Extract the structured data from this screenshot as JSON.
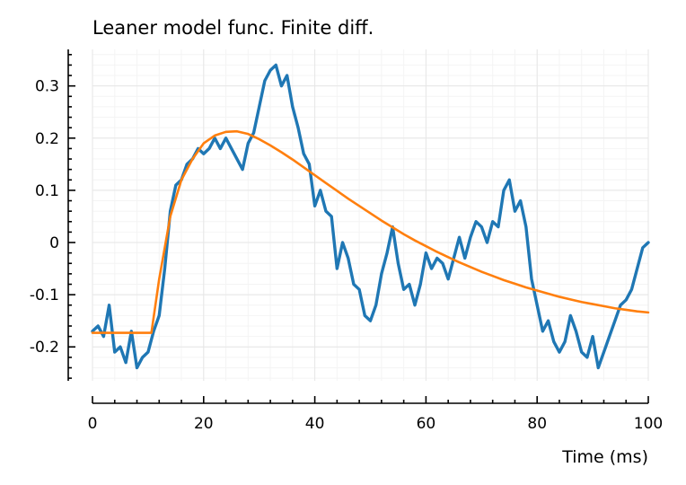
{
  "chart_data": {
    "type": "line",
    "title": "Leaner model func. Finite diff.",
    "xlabel": "Time (ms)",
    "ylabel": "",
    "xlim": [
      0,
      100
    ],
    "ylim": [
      -0.265,
      0.37
    ],
    "x_ticks": [
      0,
      20,
      40,
      60,
      80,
      100
    ],
    "x_tick_labels": [
      "0",
      "20",
      "40",
      "60",
      "80",
      "100"
    ],
    "y_ticks": [
      -0.2,
      -0.1,
      0,
      0.1,
      0.2,
      0.3
    ],
    "y_tick_labels": [
      "-0.2",
      "-0.1",
      "0",
      "0.1",
      "0.2",
      "0.3"
    ],
    "grid": true,
    "legend": "none",
    "series": [
      {
        "color": "#1f77b4",
        "x": [
          0,
          1,
          2,
          3,
          4,
          5,
          6,
          7,
          8,
          9,
          10,
          11,
          12,
          13,
          14,
          15,
          16,
          17,
          18,
          19,
          20,
          21,
          22,
          23,
          24,
          25,
          26,
          27,
          28,
          29,
          30,
          31,
          32,
          33,
          34,
          35,
          36,
          37,
          38,
          39,
          40,
          41,
          42,
          43,
          44,
          45,
          46,
          47,
          48,
          49,
          50,
          51,
          52,
          53,
          54,
          55,
          56,
          57,
          58,
          59,
          60,
          61,
          62,
          63,
          64,
          65,
          66,
          67,
          68,
          69,
          70,
          71,
          72,
          73,
          74,
          75,
          76,
          77,
          78,
          79,
          80,
          81,
          82,
          83,
          84,
          85,
          86,
          87,
          88,
          89,
          90,
          91,
          92,
          93,
          94,
          95,
          96,
          97,
          98,
          99,
          100
        ],
        "y": [
          -0.17,
          -0.16,
          -0.18,
          -0.12,
          -0.21,
          -0.2,
          -0.23,
          -0.17,
          -0.24,
          -0.22,
          -0.21,
          -0.17,
          -0.14,
          -0.05,
          0.06,
          0.11,
          0.12,
          0.15,
          0.16,
          0.18,
          0.17,
          0.18,
          0.2,
          0.18,
          0.2,
          0.18,
          0.16,
          0.14,
          0.19,
          0.21,
          0.26,
          0.31,
          0.33,
          0.34,
          0.3,
          0.32,
          0.26,
          0.22,
          0.17,
          0.15,
          0.07,
          0.1,
          0.06,
          0.05,
          -0.05,
          0.0,
          -0.03,
          -0.08,
          -0.09,
          -0.14,
          -0.15,
          -0.12,
          -0.06,
          -0.02,
          0.03,
          -0.04,
          -0.09,
          -0.08,
          -0.12,
          -0.08,
          -0.02,
          -0.05,
          -0.03,
          -0.04,
          -0.07,
          -0.03,
          0.01,
          -0.03,
          0.01,
          0.04,
          0.03,
          0.0,
          0.04,
          0.03,
          0.1,
          0.12,
          0.06,
          0.08,
          0.03,
          -0.07,
          -0.12,
          -0.17,
          -0.15,
          -0.19,
          -0.21,
          -0.19,
          -0.14,
          -0.17,
          -0.21,
          -0.22,
          -0.18,
          -0.24,
          -0.21,
          -0.18,
          -0.15,
          -0.12,
          -0.11,
          -0.09,
          -0.05,
          -0.01,
          0.0
        ]
      },
      {
        "color": "#ff7f0e",
        "x": [
          0,
          2,
          4,
          6,
          8,
          10,
          10.6,
          12,
          14,
          16,
          18,
          20,
          22,
          24,
          26,
          28,
          30,
          32,
          34,
          36,
          38,
          40,
          42,
          44,
          46,
          48,
          50,
          52,
          54,
          56,
          58,
          60,
          62,
          64,
          66,
          68,
          70,
          72,
          74,
          76,
          78,
          80,
          82,
          84,
          86,
          88,
          90,
          92,
          94,
          96,
          98,
          100
        ],
        "y": [
          -0.173,
          -0.173,
          -0.173,
          -0.173,
          -0.173,
          -0.173,
          -0.173,
          -0.07,
          0.05,
          0.12,
          0.16,
          0.19,
          0.205,
          0.212,
          0.213,
          0.208,
          0.198,
          0.186,
          0.173,
          0.159,
          0.144,
          0.129,
          0.114,
          0.099,
          0.084,
          0.07,
          0.056,
          0.042,
          0.029,
          0.016,
          0.004,
          -0.007,
          -0.018,
          -0.028,
          -0.038,
          -0.047,
          -0.056,
          -0.064,
          -0.072,
          -0.079,
          -0.086,
          -0.092,
          -0.098,
          -0.104,
          -0.109,
          -0.114,
          -0.118,
          -0.122,
          -0.126,
          -0.129,
          -0.132,
          -0.134
        ]
      }
    ]
  }
}
